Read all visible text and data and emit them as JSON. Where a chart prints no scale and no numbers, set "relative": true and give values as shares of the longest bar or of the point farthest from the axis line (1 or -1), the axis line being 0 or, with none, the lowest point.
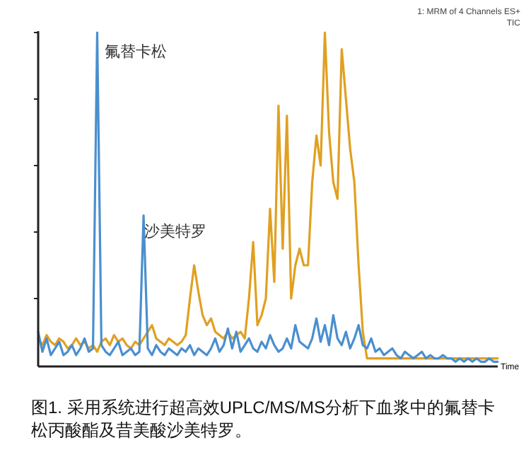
{
  "chart_data": {
    "type": "line",
    "relative": true,
    "xlabel": "Time",
    "categories": [
      null,
      null,
      null,
      null,
      null,
      null,
      null,
      null,
      null,
      null,
      null,
      null,
      null,
      null,
      null,
      null,
      null,
      null,
      null,
      null,
      null,
      null,
      null,
      null,
      null,
      null,
      null,
      null,
      null,
      null,
      null,
      null,
      null,
      null,
      null,
      null,
      null,
      null,
      null,
      null,
      null,
      null,
      null,
      null,
      null,
      null,
      null,
      null,
      null,
      null,
      null,
      null,
      null,
      null,
      null,
      null,
      null,
      null,
      null,
      null,
      null,
      null,
      null,
      null,
      null,
      null,
      null,
      null,
      null,
      null,
      null,
      null,
      null,
      null,
      null,
      null,
      null,
      null,
      null,
      null,
      null,
      null,
      null,
      null,
      null,
      null,
      null,
      null,
      null,
      null,
      null,
      null,
      null,
      null,
      null,
      null,
      null,
      null,
      null,
      null,
      null,
      null,
      null,
      null,
      null,
      null,
      null,
      null,
      null,
      null
    ],
    "series": [
      {
        "color": "#e0a020",
        "values": [
          0.08,
          0.06,
          0.09,
          0.07,
          0.06,
          0.08,
          0.07,
          0.05,
          0.06,
          0.08,
          0.06,
          0.07,
          0.05,
          0.06,
          0.04,
          0.07,
          0.08,
          0.06,
          0.09,
          0.07,
          0.08,
          0.06,
          0.05,
          0.07,
          0.06,
          0.08,
          0.1,
          0.12,
          0.08,
          0.07,
          0.06,
          0.08,
          0.07,
          0.06,
          0.07,
          0.09,
          0.2,
          0.3,
          0.22,
          0.15,
          0.12,
          0.14,
          0.1,
          0.09,
          0.08,
          0.1,
          0.08,
          0.09,
          0.1,
          0.08,
          0.2,
          0.37,
          0.12,
          0.15,
          0.2,
          0.47,
          0.25,
          0.78,
          0.35,
          0.75,
          0.2,
          0.3,
          0.35,
          0.3,
          0.3,
          0.55,
          0.69,
          0.6,
          1.0,
          0.7,
          0.55,
          0.5,
          0.95,
          0.8,
          0.65,
          0.55,
          0.3,
          0.1,
          0.02,
          0.02,
          0.02,
          0.02,
          0.02,
          0.02,
          0.02,
          0.02,
          0.02,
          0.02,
          0.02,
          0.02,
          0.02,
          0.02,
          0.02,
          0.02,
          0.02,
          0.02,
          0.02,
          0.02,
          0.02,
          0.02,
          0.02,
          0.02,
          0.02,
          0.02,
          0.02,
          0.02,
          0.02,
          0.02,
          0.02,
          0.02
        ]
      },
      {
        "color": "#4a8fcf",
        "values": [
          0.1,
          0.04,
          0.08,
          0.03,
          0.05,
          0.07,
          0.03,
          0.04,
          0.06,
          0.03,
          0.05,
          0.08,
          0.04,
          0.05,
          1.0,
          0.06,
          0.04,
          0.03,
          0.05,
          0.07,
          0.03,
          0.04,
          0.05,
          0.03,
          0.04,
          0.45,
          0.05,
          0.03,
          0.06,
          0.04,
          0.03,
          0.05,
          0.04,
          0.03,
          0.05,
          0.04,
          0.06,
          0.03,
          0.05,
          0.04,
          0.03,
          0.05,
          0.08,
          0.04,
          0.06,
          0.11,
          0.05,
          0.1,
          0.04,
          0.06,
          0.08,
          0.05,
          0.04,
          0.07,
          0.05,
          0.09,
          0.06,
          0.04,
          0.05,
          0.08,
          0.05,
          0.12,
          0.07,
          0.06,
          0.05,
          0.08,
          0.14,
          0.07,
          0.12,
          0.06,
          0.15,
          0.08,
          0.06,
          0.1,
          0.05,
          0.08,
          0.12,
          0.06,
          0.05,
          0.08,
          0.04,
          0.05,
          0.03,
          0.04,
          0.05,
          0.03,
          0.02,
          0.04,
          0.03,
          0.02,
          0.03,
          0.04,
          0.02,
          0.03,
          0.02,
          0.02,
          0.03,
          0.02,
          0.02,
          0.01,
          0.02,
          0.01,
          0.02,
          0.01,
          0.02,
          0.01,
          0.01,
          0.02,
          0.01,
          0.01
        ]
      }
    ],
    "annotations": [
      "氟替卡松",
      "沙美特罗",
      "1: MRM of 4 Channels ES+",
      "TIC",
      "图1. 采用系统进行超高效UPLC/MS/MS分析下血浆中的氟替卡松丙酸酯及昔美酸沙美特罗。"
    ]
  }
}
